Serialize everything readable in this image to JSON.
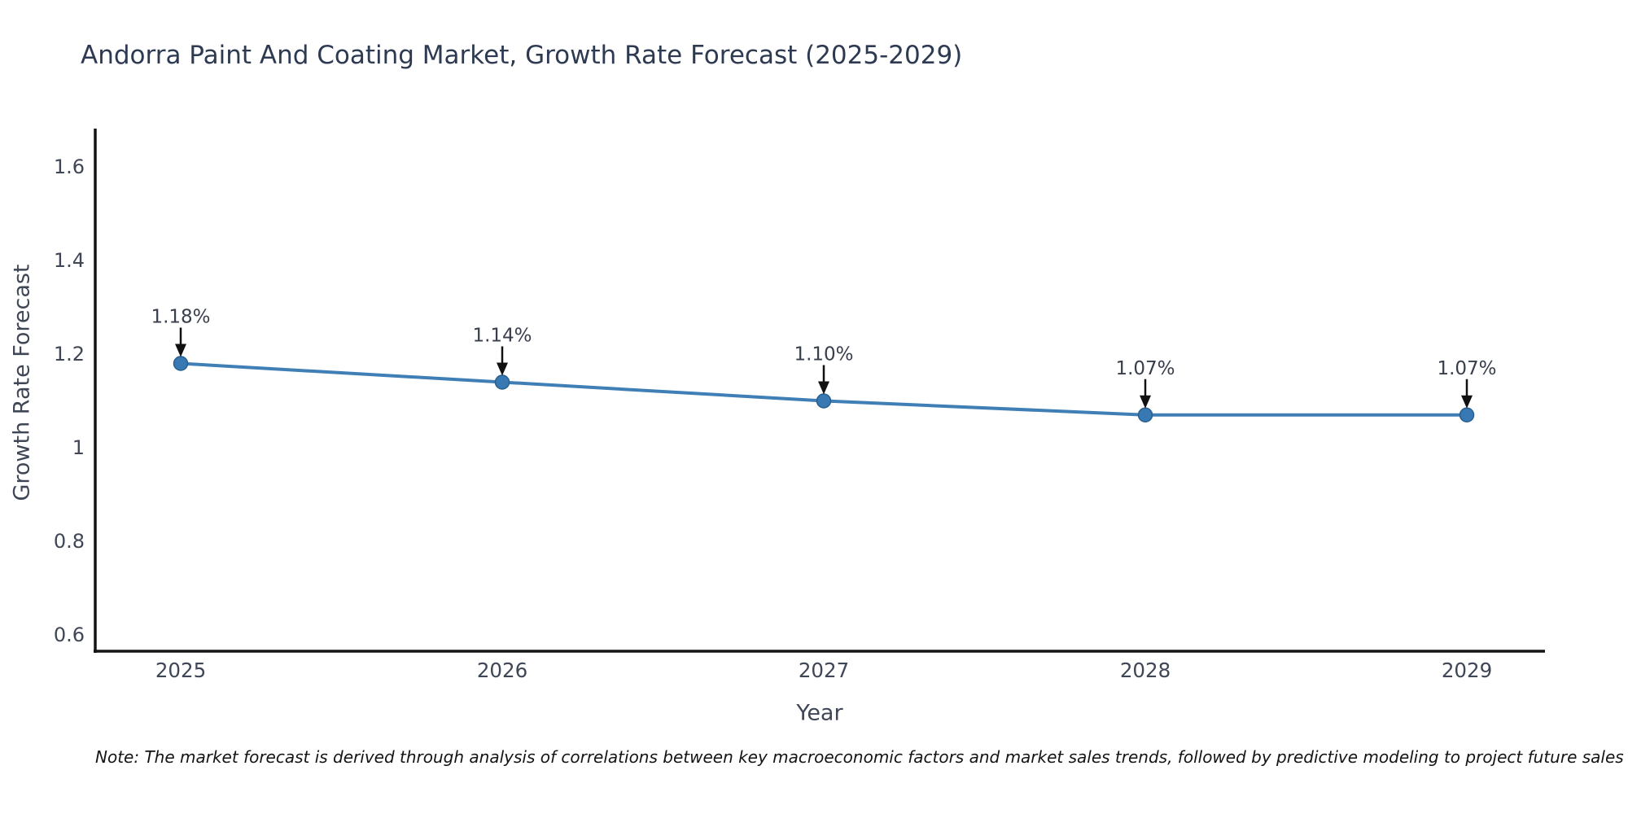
{
  "page": {
    "title": "Andorra Paint And Coating Market, Growth Rate Forecast (2025-2029)",
    "note": "Note: The market forecast is derived through analysis of correlations between key macroeconomic factors and market sales trends, followed by predictive modeling to project future sales"
  },
  "chart_data": {
    "type": "line",
    "title": "Andorra Paint And Coating Market, Growth Rate Forecast (2025-2029)",
    "xlabel": "Year",
    "ylabel": "Growth Rate Forecast",
    "x": [
      "2025",
      "2026",
      "2027",
      "2028",
      "2029"
    ],
    "series": [
      {
        "name": "Growth Rate Forecast",
        "values": [
          1.18,
          1.14,
          1.1,
          1.07,
          1.07
        ],
        "labels": [
          "1.18%",
          "1.14%",
          "1.10%",
          "1.07%",
          "1.07%"
        ]
      }
    ],
    "yticks": [
      "0.6",
      "0.8",
      "1",
      "1.2",
      "1.4",
      "1.6"
    ],
    "ylim": [
      0.56,
      1.68
    ],
    "grid": false,
    "legend": "none",
    "annotation_style": "value label with downward black arrow to each marker",
    "colors": {
      "line": "#3f7fb5",
      "marker_fill": "#3878b3",
      "marker_edge": "#28608f",
      "annotation_text": "#383e4c",
      "annotation_arrow": "#111111",
      "axis": "#141414",
      "tick_text": "#3f4655",
      "title_text": "#2d3a52"
    }
  }
}
